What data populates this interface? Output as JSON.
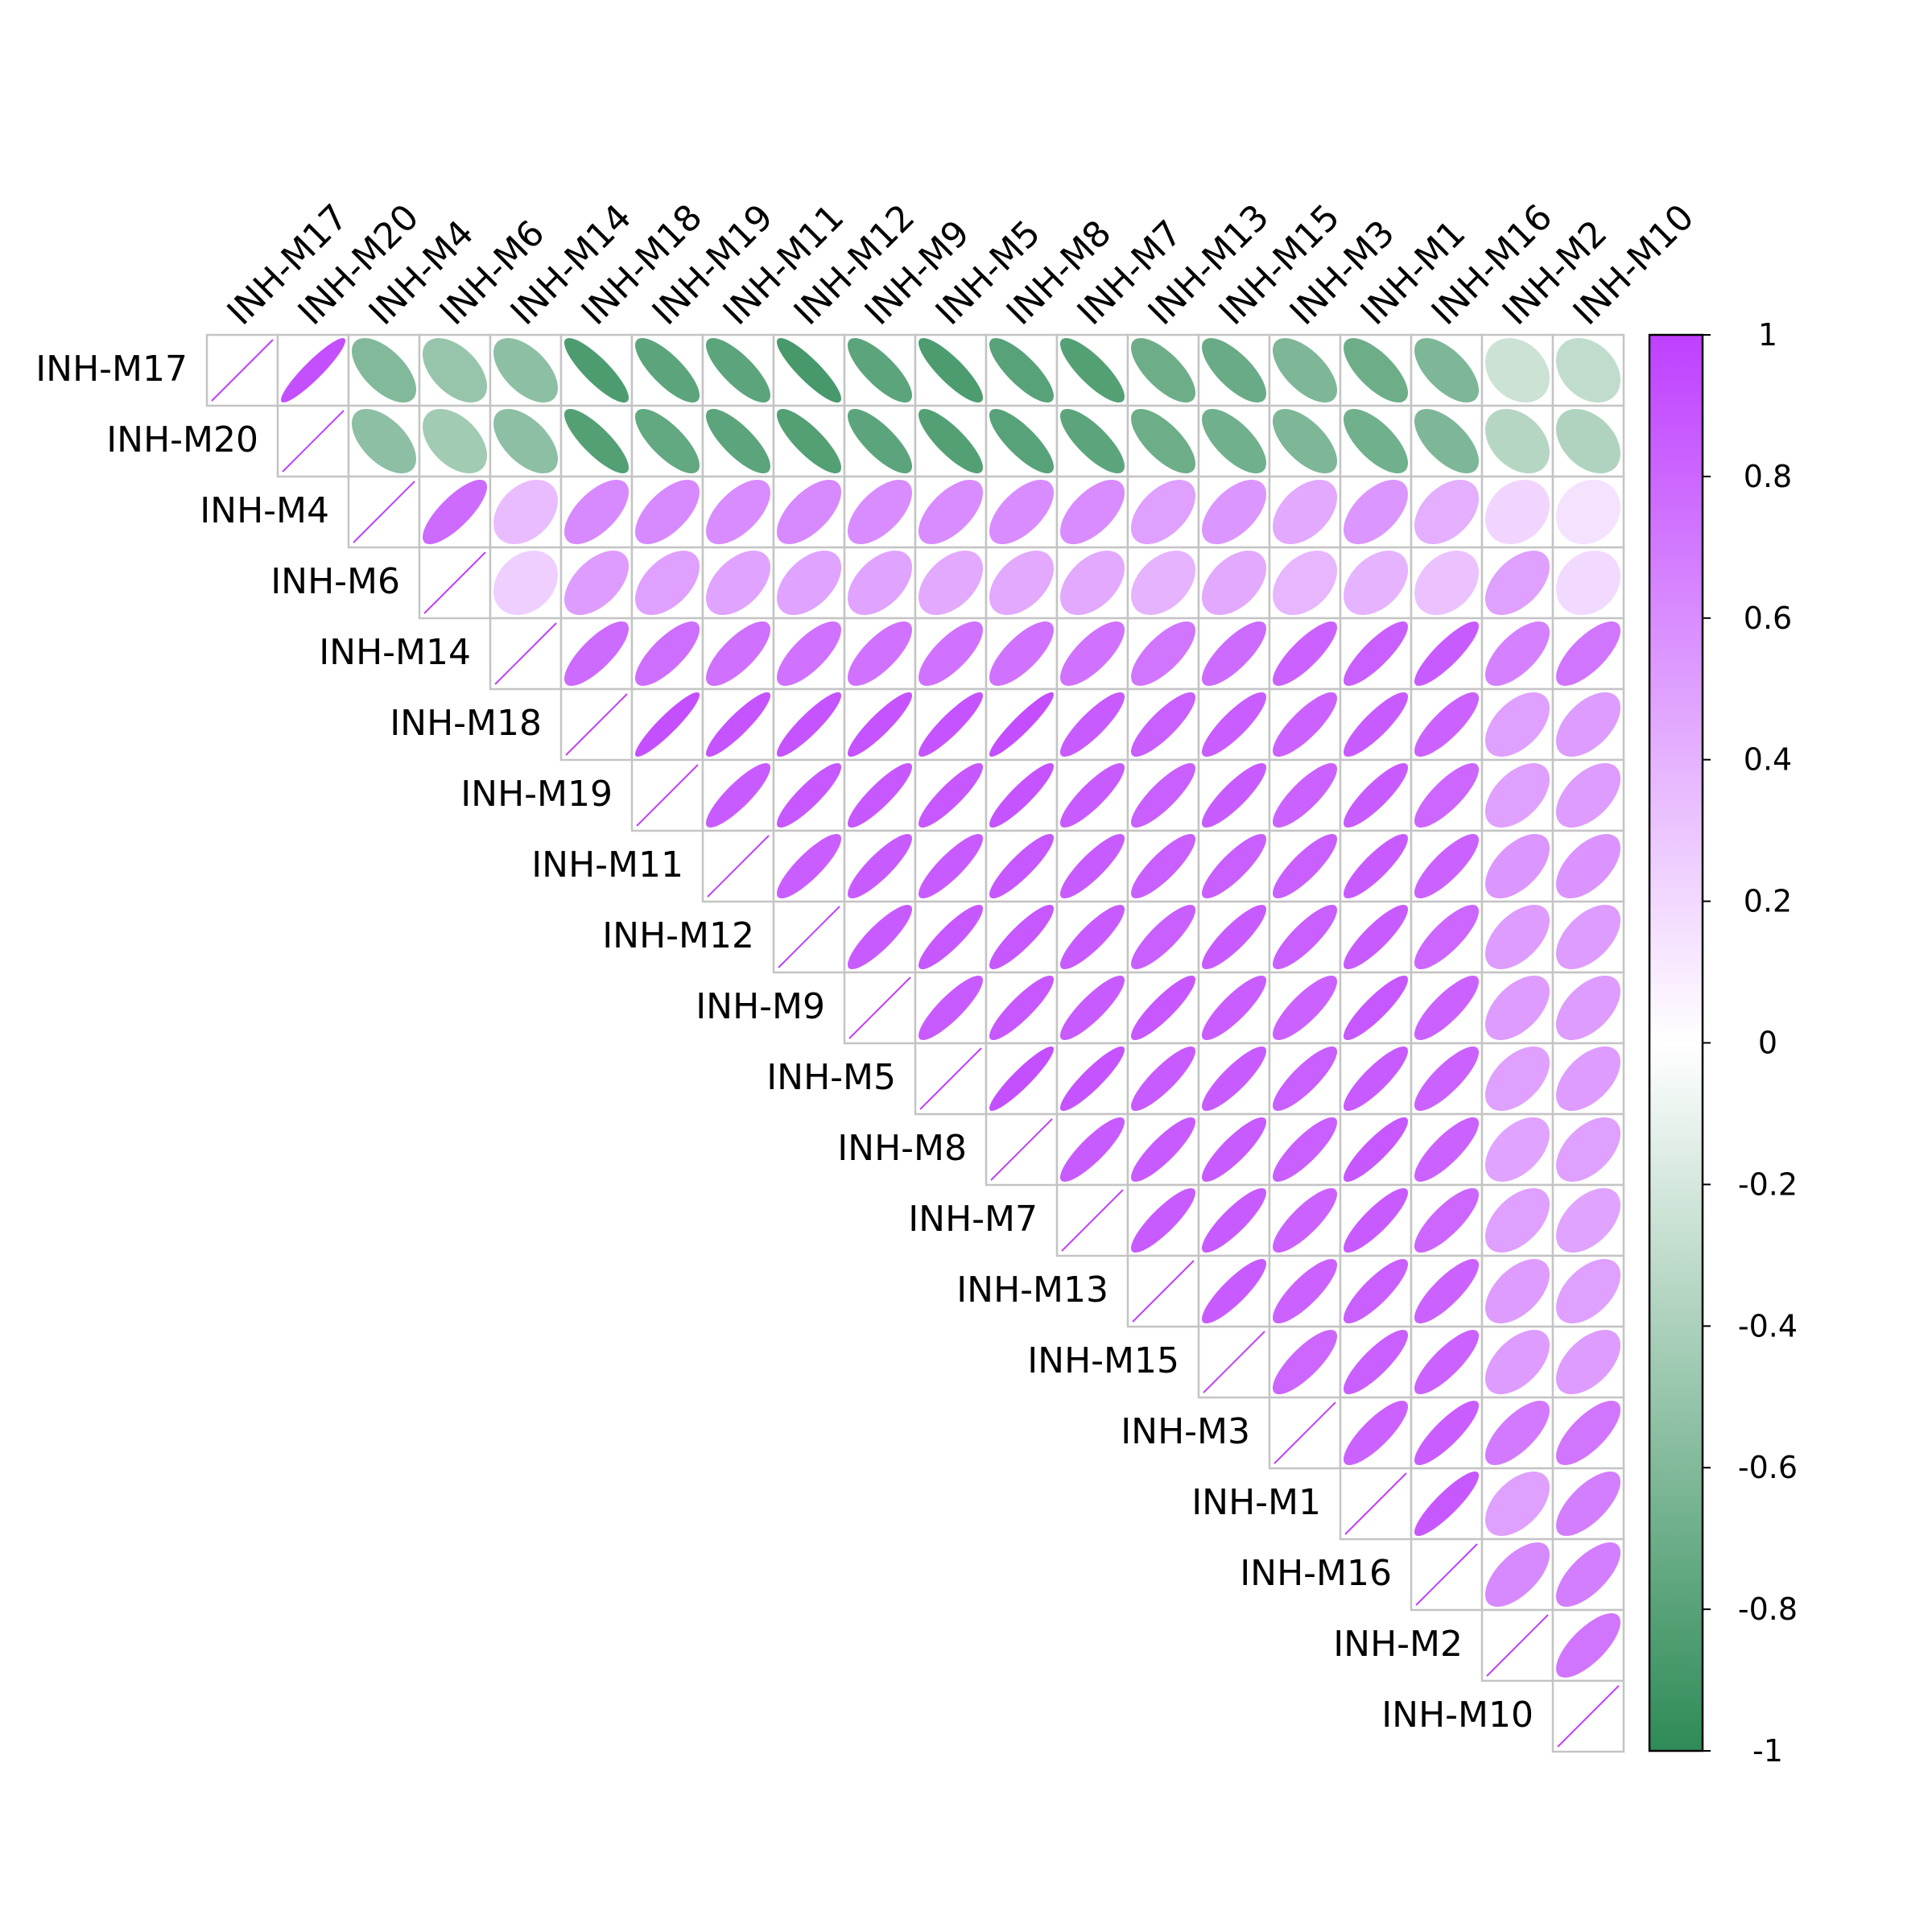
{
  "chart_data": {
    "type": "heatmap",
    "subtype": "correlation-ellipse-upper-triangle",
    "title": "",
    "xlabel": "",
    "ylabel": "",
    "variables": [
      "INH-M17",
      "INH-M20",
      "INH-M4",
      "INH-M6",
      "INH-M14",
      "INH-M18",
      "INH-M19",
      "INH-M11",
      "INH-M12",
      "INH-M9",
      "INH-M5",
      "INH-M8",
      "INH-M7",
      "INH-M13",
      "INH-M15",
      "INH-M3",
      "INH-M1",
      "INH-M16",
      "INH-M2",
      "INH-M10"
    ],
    "matrix": [
      [
        1,
        0.92,
        -0.6,
        -0.5,
        -0.55,
        -0.85,
        -0.78,
        -0.78,
        -0.88,
        -0.78,
        -0.85,
        -0.8,
        -0.82,
        -0.7,
        -0.72,
        -0.62,
        -0.7,
        -0.62,
        -0.25,
        -0.3
      ],
      [
        0.92,
        1,
        -0.55,
        -0.45,
        -0.55,
        -0.82,
        -0.75,
        -0.78,
        -0.82,
        -0.78,
        -0.82,
        -0.8,
        -0.78,
        -0.7,
        -0.68,
        -0.62,
        -0.68,
        -0.62,
        -0.35,
        -0.38
      ],
      [
        -0.6,
        -0.55,
        1,
        0.78,
        0.35,
        0.62,
        0.62,
        0.6,
        0.62,
        0.6,
        0.6,
        0.6,
        0.6,
        0.5,
        0.55,
        0.45,
        0.55,
        0.42,
        0.22,
        0.15
      ],
      [
        -0.5,
        -0.45,
        0.78,
        1,
        0.25,
        0.52,
        0.5,
        0.48,
        0.48,
        0.48,
        0.45,
        0.45,
        0.45,
        0.4,
        0.45,
        0.38,
        0.4,
        0.32,
        0.5,
        0.2
      ],
      [
        -0.55,
        -0.55,
        0.35,
        0.25,
        1,
        0.78,
        0.76,
        0.75,
        0.74,
        0.74,
        0.74,
        0.74,
        0.74,
        0.72,
        0.78,
        0.82,
        0.84,
        0.86,
        0.66,
        0.72
      ],
      [
        -0.85,
        -0.82,
        0.62,
        0.52,
        0.78,
        1,
        0.92,
        0.9,
        0.9,
        0.9,
        0.9,
        0.93,
        0.86,
        0.84,
        0.85,
        0.82,
        0.86,
        0.82,
        0.5,
        0.52
      ],
      [
        -0.78,
        -0.75,
        0.62,
        0.5,
        0.76,
        0.92,
        1,
        0.86,
        0.88,
        0.88,
        0.88,
        0.9,
        0.86,
        0.84,
        0.86,
        0.82,
        0.86,
        0.8,
        0.5,
        0.52
      ],
      [
        -0.78,
        -0.78,
        0.6,
        0.48,
        0.75,
        0.9,
        0.86,
        1,
        0.85,
        0.86,
        0.86,
        0.88,
        0.86,
        0.84,
        0.84,
        0.84,
        0.86,
        0.82,
        0.55,
        0.56
      ],
      [
        -0.88,
        -0.82,
        0.62,
        0.48,
        0.74,
        0.9,
        0.88,
        0.85,
        1,
        0.86,
        0.88,
        0.88,
        0.86,
        0.84,
        0.86,
        0.84,
        0.86,
        0.8,
        0.52,
        0.52
      ],
      [
        -0.78,
        -0.78,
        0.6,
        0.48,
        0.74,
        0.9,
        0.88,
        0.86,
        0.86,
        1,
        0.86,
        0.88,
        0.86,
        0.88,
        0.85,
        0.82,
        0.88,
        0.82,
        0.52,
        0.52
      ],
      [
        -0.85,
        -0.82,
        0.6,
        0.45,
        0.74,
        0.9,
        0.88,
        0.86,
        0.88,
        0.86,
        1,
        0.92,
        0.9,
        0.86,
        0.86,
        0.84,
        0.86,
        0.82,
        0.5,
        0.52
      ],
      [
        -0.8,
        -0.8,
        0.6,
        0.45,
        0.74,
        0.93,
        0.9,
        0.88,
        0.88,
        0.88,
        0.92,
        1,
        0.86,
        0.86,
        0.86,
        0.84,
        0.88,
        0.82,
        0.48,
        0.5
      ],
      [
        -0.82,
        -0.78,
        0.6,
        0.45,
        0.74,
        0.86,
        0.86,
        0.86,
        0.86,
        0.86,
        0.9,
        0.86,
        1,
        0.86,
        0.86,
        0.82,
        0.86,
        0.8,
        0.5,
        0.48
      ],
      [
        -0.7,
        -0.7,
        0.5,
        0.4,
        0.72,
        0.84,
        0.84,
        0.84,
        0.84,
        0.88,
        0.86,
        0.86,
        0.86,
        1,
        0.86,
        0.82,
        0.84,
        0.82,
        0.52,
        0.5
      ],
      [
        -0.72,
        -0.68,
        0.55,
        0.45,
        0.78,
        0.85,
        0.86,
        0.84,
        0.86,
        0.85,
        0.86,
        0.86,
        0.86,
        0.86,
        1,
        0.8,
        0.84,
        0.82,
        0.52,
        0.52
      ],
      [
        -0.62,
        -0.62,
        0.45,
        0.38,
        0.82,
        0.82,
        0.82,
        0.84,
        0.84,
        0.82,
        0.84,
        0.84,
        0.82,
        0.82,
        0.8,
        1,
        0.82,
        0.85,
        0.7,
        0.72
      ],
      [
        -0.7,
        -0.68,
        0.55,
        0.4,
        0.84,
        0.86,
        0.86,
        0.86,
        0.86,
        0.88,
        0.86,
        0.88,
        0.86,
        0.84,
        0.84,
        0.82,
        1,
        0.88,
        0.5,
        0.68
      ],
      [
        -0.62,
        -0.62,
        0.42,
        0.32,
        0.86,
        0.82,
        0.8,
        0.82,
        0.8,
        0.82,
        0.82,
        0.82,
        0.8,
        0.82,
        0.82,
        0.85,
        0.88,
        1,
        0.62,
        0.68
      ],
      [
        -0.25,
        -0.35,
        0.22,
        0.5,
        0.66,
        0.5,
        0.5,
        0.55,
        0.52,
        0.52,
        0.5,
        0.48,
        0.5,
        0.52,
        0.52,
        0.7,
        0.5,
        0.62,
        1,
        0.72
      ],
      [
        -0.3,
        -0.38,
        0.15,
        0.2,
        0.72,
        0.52,
        0.52,
        0.56,
        0.52,
        0.52,
        0.52,
        0.5,
        0.48,
        0.5,
        0.52,
        0.72,
        0.68,
        0.68,
        0.72,
        1
      ]
    ],
    "color_scale": {
      "range": [
        -1,
        1
      ],
      "low": "#2e8b57",
      "mid": "#ffffff",
      "high": "#bf40ff",
      "ticks": [
        "1",
        "0.8",
        "0.6",
        "0.4",
        "0.2",
        "0",
        "-0.2",
        "-0.4",
        "-0.6",
        "-0.8",
        "-1"
      ]
    },
    "grid": true,
    "legend": "colorbar-right"
  }
}
